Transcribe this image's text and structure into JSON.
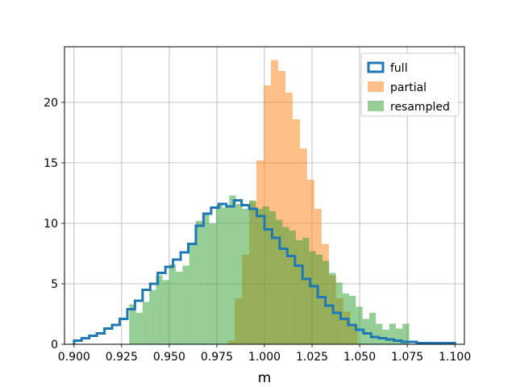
{
  "chart_data": {
    "type": "histogram",
    "xlabel": "m",
    "ylabel": "",
    "title": "",
    "xlim": [
      0.895,
      1.105
    ],
    "ylim": [
      0,
      24.6
    ],
    "grid": true,
    "legend_position": "top-right",
    "xticks": [
      "0.900",
      "0.925",
      "0.950",
      "0.975",
      "1.000",
      "1.025",
      "1.050",
      "1.075",
      "1.100"
    ],
    "yticks": [
      "0",
      "5",
      "10",
      "15",
      "20"
    ],
    "series": [
      {
        "name": "full",
        "style": "step",
        "color": "#1f77b4",
        "bin_start": 0.9,
        "bin_width": 0.004,
        "counts": [
          0.3,
          0.5,
          0.7,
          0.9,
          1.3,
          1.6,
          2.1,
          2.9,
          3.6,
          4.5,
          5.0,
          5.9,
          6.4,
          7.0,
          7.6,
          8.3,
          9.8,
          10.8,
          11.3,
          11.6,
          11.4,
          11.9,
          11.5,
          11.2,
          10.6,
          9.5,
          8.8,
          7.9,
          7.3,
          6.5,
          5.4,
          4.8,
          3.9,
          3.2,
          2.6,
          2.1,
          1.6,
          1.2,
          0.9,
          0.6,
          0.5,
          0.4,
          0.3,
          0.2,
          0.2,
          0.1,
          0.1,
          0.1,
          0.1,
          0.1
        ]
      },
      {
        "name": "partial",
        "style": "bar",
        "color": "#ff7f0e",
        "alpha": 0.5,
        "bin_start": 0.9768,
        "bin_width": 0.0038,
        "counts": [
          0,
          0.3,
          3.8,
          7.4,
          11.8,
          15.2,
          21.4,
          23.5,
          22.6,
          20.8,
          18.6,
          16.2,
          13.6,
          11.2,
          8.3,
          5.7,
          3.8,
          2.7,
          1.5
        ]
      },
      {
        "name": "resampled",
        "style": "bar",
        "color": "#2ca02c",
        "alpha": 0.5,
        "bin_start": 0.929,
        "bin_width": 0.0035,
        "counts": [
          3.3,
          2.6,
          3.5,
          4.5,
          5.7,
          5.3,
          6.6,
          6.0,
          6.5,
          8.2,
          10.2,
          10.8,
          10.0,
          11.5,
          11.3,
          12.3,
          11.6,
          11.2,
          11.9,
          11.2,
          11.4,
          11.0,
          10.3,
          9.7,
          9.4,
          8.6,
          8.8,
          7.7,
          7.4,
          6.9,
          5.9,
          5.1,
          4.2,
          4.0,
          3.1,
          2.1,
          2.6,
          1.7,
          1.2,
          1.7,
          1.3,
          1.7
        ]
      }
    ]
  }
}
